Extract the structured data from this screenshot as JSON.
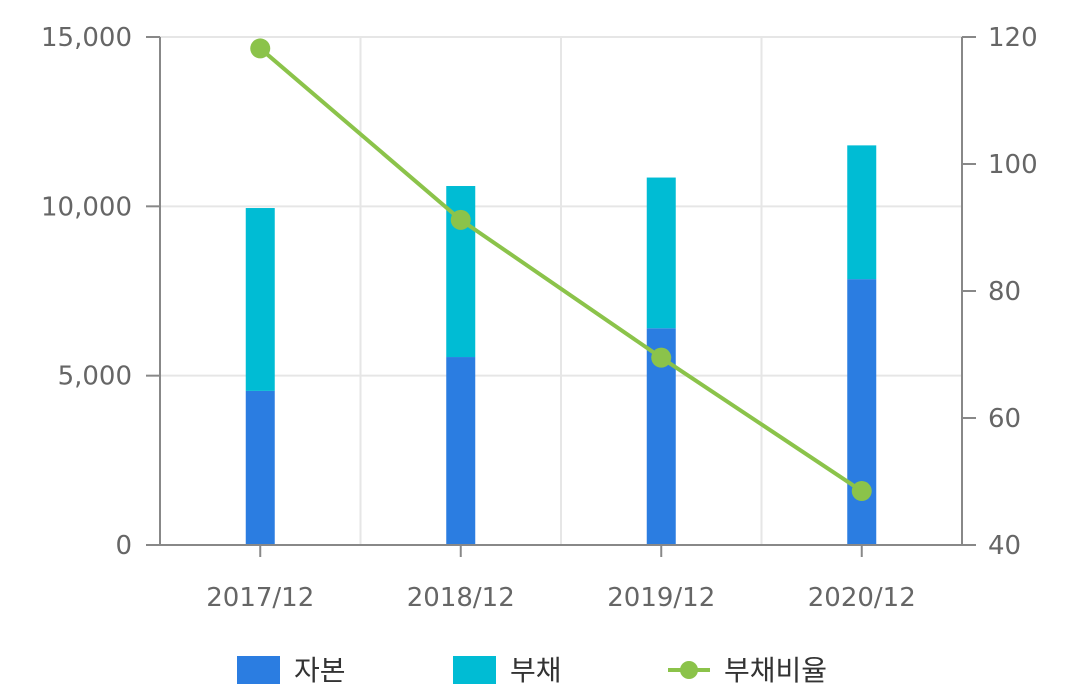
{
  "chart_data": {
    "type": "bar",
    "stacked": true,
    "categories": [
      "2017/12",
      "2018/12",
      "2019/12",
      "2020/12"
    ],
    "series": [
      {
        "name": "자본",
        "type": "bar",
        "axis": "left",
        "color": "#2b7de1",
        "values": [
          4550,
          5550,
          6400,
          7850
        ]
      },
      {
        "name": "부채",
        "type": "bar",
        "axis": "left",
        "color": "#00bcd4",
        "values": [
          5400,
          5050,
          4450,
          3950
        ]
      },
      {
        "name": "부채비율",
        "type": "line",
        "axis": "right",
        "color": "#8bc34a",
        "values": [
          118.2,
          91.2,
          69.5,
          48.5
        ]
      }
    ],
    "y_left": {
      "range": [
        0,
        15000
      ],
      "ticks": [
        "0",
        "5,000",
        "10,000",
        "15,000"
      ],
      "tick_values": [
        0,
        5000,
        10000,
        15000
      ]
    },
    "y_right": {
      "range": [
        40,
        120
      ],
      "ticks": [
        "40",
        "60",
        "80",
        "100",
        "120"
      ],
      "tick_values": [
        40,
        60,
        80,
        100,
        120
      ]
    },
    "grid": true,
    "legend_position": "bottom"
  }
}
